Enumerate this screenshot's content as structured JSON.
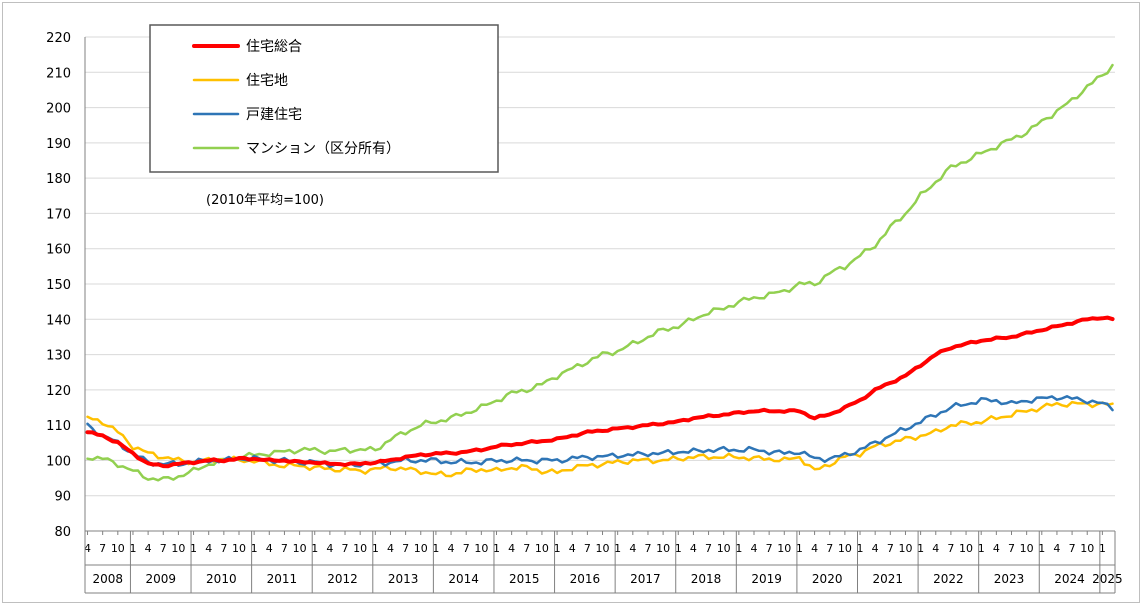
{
  "chart_data": {
    "type": "line",
    "note": "(2010年平均=100)",
    "ylim": [
      80,
      220
    ],
    "yticks": [
      80,
      90,
      100,
      110,
      120,
      130,
      140,
      150,
      160,
      170,
      180,
      190,
      200,
      210,
      220
    ],
    "years": [
      "2008",
      "2009",
      "2010",
      "2011",
      "2012",
      "2013",
      "2014",
      "2015",
      "2016",
      "2017",
      "2018",
      "2019",
      "2020",
      "2021",
      "2022",
      "2023",
      "2024",
      "2025"
    ],
    "month_ticks": [
      "4",
      "7",
      "10",
      "1"
    ],
    "x_start": "2008-04",
    "x_end": "2025-03",
    "colors": {
      "住宅総合": "#ff0000",
      "住宅地": "#ffc000",
      "戸建住宅": "#2e75b6",
      "マンション(区分所有)": "#92d050"
    },
    "series": [
      {
        "name": "住宅総合",
        "color": "#ff0000",
        "width": 4,
        "points": [
          [
            "2008-04",
            108
          ],
          [
            "2008-07",
            107
          ],
          [
            "2008-10",
            105
          ],
          [
            "2009-01",
            102
          ],
          [
            "2009-04",
            99
          ],
          [
            "2009-07",
            98.5
          ],
          [
            "2009-10",
            99
          ],
          [
            "2010-01",
            99.5
          ],
          [
            "2010-04",
            100
          ],
          [
            "2010-07",
            100
          ],
          [
            "2010-10",
            100.5
          ],
          [
            "2011-01",
            100.5
          ],
          [
            "2011-04",
            100
          ],
          [
            "2011-07",
            100
          ],
          [
            "2011-10",
            99.5
          ],
          [
            "2012-01",
            99.5
          ],
          [
            "2012-04",
            99
          ],
          [
            "2012-07",
            99
          ],
          [
            "2012-10",
            99
          ],
          [
            "2013-01",
            99.5
          ],
          [
            "2013-04",
            100
          ],
          [
            "2013-07",
            101
          ],
          [
            "2013-10",
            101.5
          ],
          [
            "2014-01",
            102
          ],
          [
            "2014-04",
            102
          ],
          [
            "2014-07",
            102.5
          ],
          [
            "2014-10",
            103
          ],
          [
            "2015-01",
            104
          ],
          [
            "2015-04",
            104.5
          ],
          [
            "2015-07",
            105
          ],
          [
            "2015-10",
            105.5
          ],
          [
            "2016-01",
            106
          ],
          [
            "2016-04",
            107
          ],
          [
            "2016-07",
            108
          ],
          [
            "2016-10",
            108.5
          ],
          [
            "2017-01",
            109
          ],
          [
            "2017-04",
            109.5
          ],
          [
            "2017-07",
            110
          ],
          [
            "2017-10",
            110.5
          ],
          [
            "2018-01",
            111
          ],
          [
            "2018-04",
            112
          ],
          [
            "2018-07",
            112.5
          ],
          [
            "2018-10",
            113
          ],
          [
            "2019-01",
            113.5
          ],
          [
            "2019-04",
            114
          ],
          [
            "2019-07",
            114
          ],
          [
            "2019-10",
            114
          ],
          [
            "2020-01",
            114
          ],
          [
            "2020-04",
            112
          ],
          [
            "2020-07",
            113
          ],
          [
            "2020-10",
            115
          ],
          [
            "2021-01",
            117
          ],
          [
            "2021-04",
            120
          ],
          [
            "2021-07",
            122
          ],
          [
            "2021-10",
            124
          ],
          [
            "2022-01",
            127
          ],
          [
            "2022-04",
            130
          ],
          [
            "2022-07",
            132
          ],
          [
            "2022-10",
            133
          ],
          [
            "2023-01",
            134
          ],
          [
            "2023-04",
            134.5
          ],
          [
            "2023-07",
            135
          ],
          [
            "2023-10",
            136
          ],
          [
            "2024-01",
            137
          ],
          [
            "2024-04",
            138
          ],
          [
            "2024-07",
            139
          ],
          [
            "2024-10",
            140
          ],
          [
            "2025-01",
            140.5
          ],
          [
            "2025-03",
            140
          ]
        ]
      },
      {
        "name": "住宅地",
        "color": "#ffc000",
        "width": 2.5,
        "points": [
          [
            "2008-04",
            112
          ],
          [
            "2008-07",
            111
          ],
          [
            "2008-10",
            108
          ],
          [
            "2009-01",
            104
          ],
          [
            "2009-04",
            102
          ],
          [
            "2009-07",
            101
          ],
          [
            "2009-10",
            100
          ],
          [
            "2010-01",
            99.5
          ],
          [
            "2010-04",
            100
          ],
          [
            "2010-07",
            100.5
          ],
          [
            "2010-10",
            100
          ],
          [
            "2011-01",
            100
          ],
          [
            "2011-04",
            99
          ],
          [
            "2011-07",
            98.5
          ],
          [
            "2011-10",
            98.5
          ],
          [
            "2012-01",
            98
          ],
          [
            "2012-04",
            97.5
          ],
          [
            "2012-07",
            97.5
          ],
          [
            "2012-10",
            97
          ],
          [
            "2013-01",
            97.5
          ],
          [
            "2013-04",
            98
          ],
          [
            "2013-07",
            97.5
          ],
          [
            "2013-10",
            97
          ],
          [
            "2014-01",
            96
          ],
          [
            "2014-04",
            96
          ],
          [
            "2014-07",
            97
          ],
          [
            "2014-10",
            97.5
          ],
          [
            "2015-01",
            97
          ],
          [
            "2015-04",
            98
          ],
          [
            "2015-07",
            98
          ],
          [
            "2015-10",
            97
          ],
          [
            "2016-01",
            96.5
          ],
          [
            "2016-04",
            98
          ],
          [
            "2016-07",
            98.5
          ],
          [
            "2016-10",
            99
          ],
          [
            "2017-01",
            99.5
          ],
          [
            "2017-04",
            100
          ],
          [
            "2017-07",
            100
          ],
          [
            "2017-10",
            100
          ],
          [
            "2018-01",
            100.5
          ],
          [
            "2018-04",
            101
          ],
          [
            "2018-07",
            101
          ],
          [
            "2018-10",
            101
          ],
          [
            "2019-01",
            101
          ],
          [
            "2019-04",
            100.5
          ],
          [
            "2019-07",
            100.5
          ],
          [
            "2019-10",
            100
          ],
          [
            "2020-01",
            101
          ],
          [
            "2020-04",
            97
          ],
          [
            "2020-07",
            99
          ],
          [
            "2020-10",
            101
          ],
          [
            "2021-01",
            102
          ],
          [
            "2021-04",
            104
          ],
          [
            "2021-07",
            105
          ],
          [
            "2021-10",
            106
          ],
          [
            "2022-01",
            107
          ],
          [
            "2022-04",
            108
          ],
          [
            "2022-07",
            110
          ],
          [
            "2022-10",
            110.5
          ],
          [
            "2023-01",
            111
          ],
          [
            "2023-04",
            112
          ],
          [
            "2023-07",
            113
          ],
          [
            "2023-10",
            114
          ],
          [
            "2024-01",
            115
          ],
          [
            "2024-04",
            116
          ],
          [
            "2024-07",
            116
          ],
          [
            "2024-10",
            116
          ],
          [
            "2025-01",
            116
          ],
          [
            "2025-03",
            115.5
          ]
        ]
      },
      {
        "name": "戸建住宅",
        "color": "#2e75b6",
        "width": 2.5,
        "points": [
          [
            "2008-04",
            110
          ],
          [
            "2008-07",
            107
          ],
          [
            "2008-10",
            105
          ],
          [
            "2009-01",
            102
          ],
          [
            "2009-04",
            99.5
          ],
          [
            "2009-07",
            99
          ],
          [
            "2009-10",
            99
          ],
          [
            "2010-01",
            99.5
          ],
          [
            "2010-04",
            100
          ],
          [
            "2010-07",
            100
          ],
          [
            "2010-10",
            100.5
          ],
          [
            "2011-01",
            100.5
          ],
          [
            "2011-04",
            100
          ],
          [
            "2011-07",
            100
          ],
          [
            "2011-10",
            99.5
          ],
          [
            "2012-01",
            99.5
          ],
          [
            "2012-04",
            99
          ],
          [
            "2012-07",
            98.5
          ],
          [
            "2012-10",
            99
          ],
          [
            "2013-01",
            99
          ],
          [
            "2013-04",
            99.5
          ],
          [
            "2013-07",
            100
          ],
          [
            "2013-10",
            100
          ],
          [
            "2014-01",
            100
          ],
          [
            "2014-04",
            99.5
          ],
          [
            "2014-07",
            99.5
          ],
          [
            "2014-10",
            99.5
          ],
          [
            "2015-01",
            100
          ],
          [
            "2015-04",
            100
          ],
          [
            "2015-07",
            100
          ],
          [
            "2015-10",
            100
          ],
          [
            "2016-01",
            100
          ],
          [
            "2016-04",
            100.5
          ],
          [
            "2016-07",
            101
          ],
          [
            "2016-10",
            101
          ],
          [
            "2017-01",
            101.5
          ],
          [
            "2017-04",
            101.5
          ],
          [
            "2017-07",
            102
          ],
          [
            "2017-10",
            102
          ],
          [
            "2018-01",
            102.5
          ],
          [
            "2018-04",
            102.5
          ],
          [
            "2018-07",
            103
          ],
          [
            "2018-10",
            103
          ],
          [
            "2019-01",
            103
          ],
          [
            "2019-04",
            103
          ],
          [
            "2019-07",
            102.5
          ],
          [
            "2019-10",
            102
          ],
          [
            "2020-01",
            102.5
          ],
          [
            "2020-04",
            100.5
          ],
          [
            "2020-07",
            100.5
          ],
          [
            "2020-10",
            101.5
          ],
          [
            "2021-01",
            103
          ],
          [
            "2021-04",
            105
          ],
          [
            "2021-07",
            107
          ],
          [
            "2021-10",
            109
          ],
          [
            "2022-01",
            111
          ],
          [
            "2022-04",
            113
          ],
          [
            "2022-07",
            115
          ],
          [
            "2022-10",
            116
          ],
          [
            "2023-01",
            117
          ],
          [
            "2023-04",
            117
          ],
          [
            "2023-07",
            116
          ],
          [
            "2023-10",
            117
          ],
          [
            "2024-01",
            117.5
          ],
          [
            "2024-04",
            118
          ],
          [
            "2024-07",
            117.5
          ],
          [
            "2024-10",
            117
          ],
          [
            "2025-01",
            116
          ],
          [
            "2025-03",
            115
          ]
        ]
      },
      {
        "name": "マンション（区分所有）",
        "color": "#92d050",
        "width": 2.5,
        "points": [
          [
            "2008-04",
            101
          ],
          [
            "2008-07",
            100.5
          ],
          [
            "2008-10",
            99
          ],
          [
            "2009-01",
            97
          ],
          [
            "2009-04",
            95
          ],
          [
            "2009-07",
            94.5
          ],
          [
            "2009-10",
            95.5
          ],
          [
            "2010-01",
            97
          ],
          [
            "2010-04",
            99
          ],
          [
            "2010-07",
            100
          ],
          [
            "2010-10",
            101
          ],
          [
            "2011-01",
            101.5
          ],
          [
            "2011-04",
            102
          ],
          [
            "2011-07",
            102.5
          ],
          [
            "2011-10",
            103
          ],
          [
            "2012-01",
            103
          ],
          [
            "2012-04",
            102.5
          ],
          [
            "2012-07",
            103
          ],
          [
            "2012-10",
            103
          ],
          [
            "2013-01",
            103
          ],
          [
            "2013-04",
            106
          ],
          [
            "2013-07",
            108
          ],
          [
            "2013-10",
            110
          ],
          [
            "2014-01",
            111
          ],
          [
            "2014-04",
            112
          ],
          [
            "2014-07",
            113.5
          ],
          [
            "2014-10",
            115
          ],
          [
            "2015-01",
            117
          ],
          [
            "2015-04",
            119
          ],
          [
            "2015-07",
            120
          ],
          [
            "2015-10",
            121.5
          ],
          [
            "2016-01",
            124
          ],
          [
            "2016-04",
            126
          ],
          [
            "2016-07",
            128
          ],
          [
            "2016-10",
            130
          ],
          [
            "2017-01",
            131
          ],
          [
            "2017-04",
            133
          ],
          [
            "2017-07",
            135
          ],
          [
            "2017-10",
            137
          ],
          [
            "2018-01",
            138
          ],
          [
            "2018-04",
            140
          ],
          [
            "2018-07",
            142
          ],
          [
            "2018-10",
            143
          ],
          [
            "2019-01",
            145
          ],
          [
            "2019-04",
            146
          ],
          [
            "2019-07",
            147
          ],
          [
            "2019-10",
            148
          ],
          [
            "2020-01",
            150
          ],
          [
            "2020-04",
            150
          ],
          [
            "2020-07",
            153
          ],
          [
            "2020-10",
            155
          ],
          [
            "2021-01",
            158
          ],
          [
            "2021-04",
            161
          ],
          [
            "2021-07",
            166
          ],
          [
            "2021-10",
            170
          ],
          [
            "2022-01",
            175
          ],
          [
            "2022-04",
            179
          ],
          [
            "2022-07",
            183
          ],
          [
            "2022-10",
            185
          ],
          [
            "2023-01",
            187
          ],
          [
            "2023-04",
            189
          ],
          [
            "2023-07",
            191
          ],
          [
            "2023-10",
            193
          ],
          [
            "2024-01",
            196
          ],
          [
            "2024-04",
            199
          ],
          [
            "2024-07",
            202
          ],
          [
            "2024-10",
            206
          ],
          [
            "2025-01",
            209
          ],
          [
            "2025-03",
            212
          ]
        ]
      }
    ]
  }
}
